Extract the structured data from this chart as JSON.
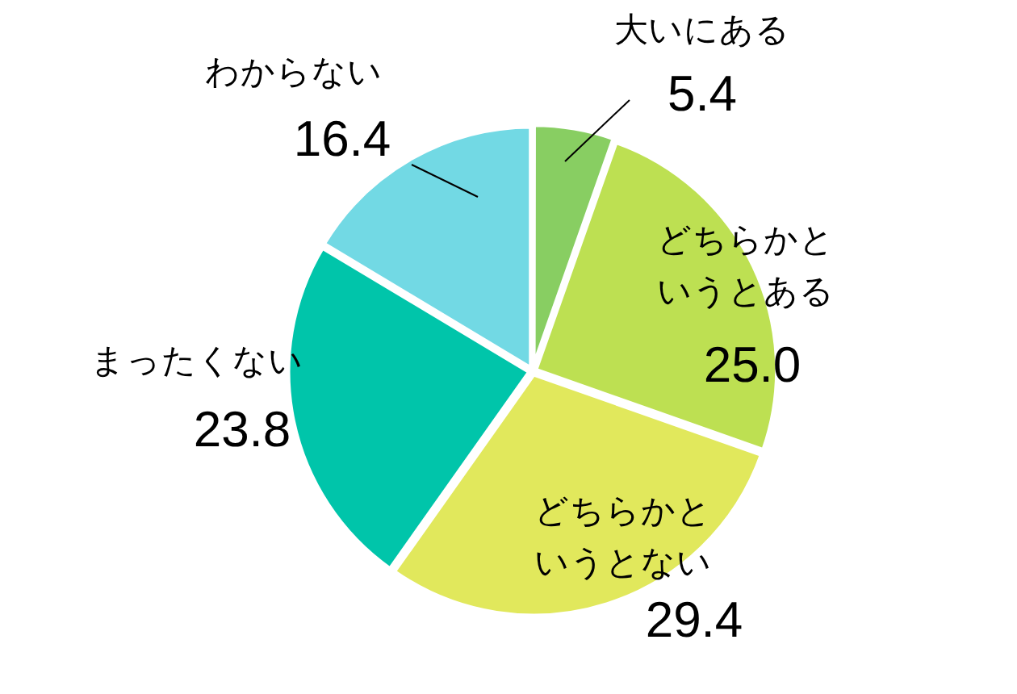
{
  "chart_data": {
    "type": "pie",
    "categories": [
      "大いにある",
      "どちらかというとある",
      "どちらかというとない",
      "まったくない",
      "わからない"
    ],
    "values": [
      5.4,
      25.0,
      29.4,
      23.8,
      16.4
    ],
    "colors": [
      "#88ce62",
      "#bde052",
      "#e1e85c",
      "#00c5aa",
      "#72d9e4"
    ],
    "value_labels": [
      "5.4",
      "25.0",
      "29.4",
      "23.8",
      "16.4"
    ],
    "legend": false
  }
}
